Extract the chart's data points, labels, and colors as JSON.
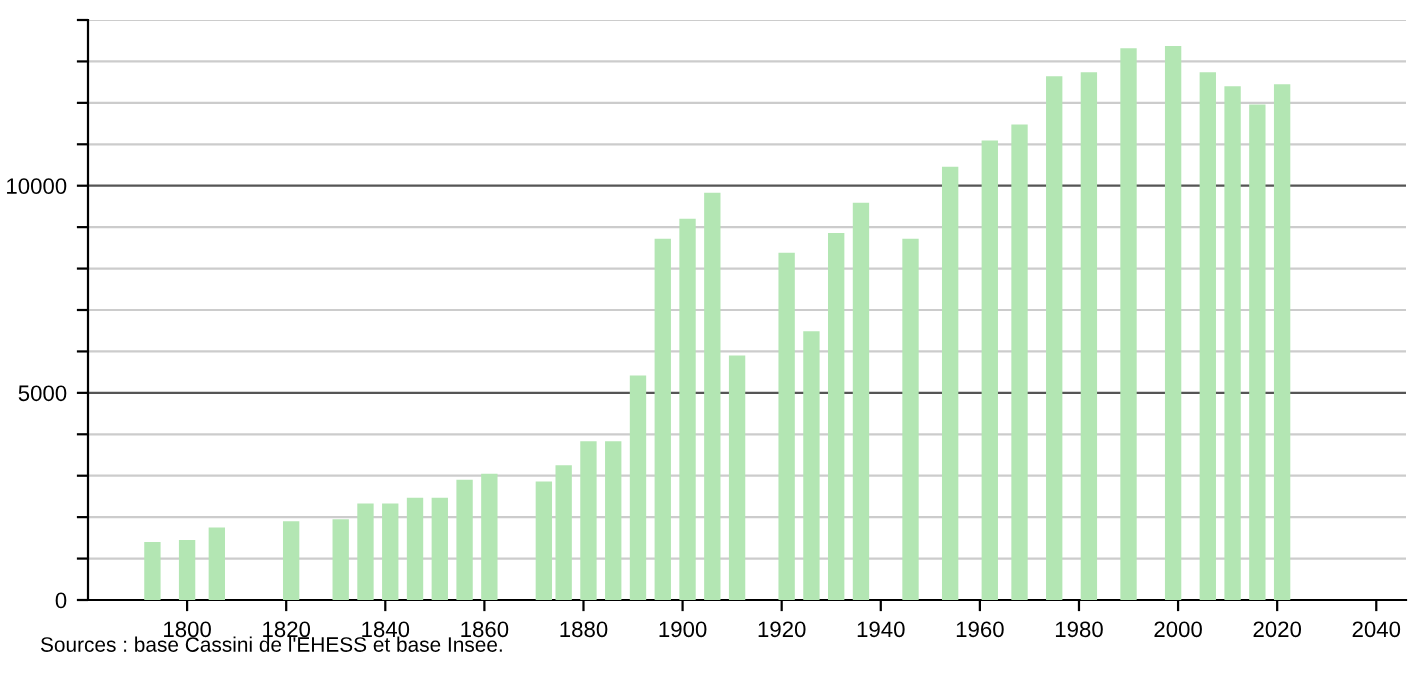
{
  "chart_data": {
    "type": "bar",
    "x": [
      1793,
      1800,
      1806,
      1821,
      1831,
      1836,
      1841,
      1846,
      1851,
      1856,
      1861,
      1872,
      1876,
      1881,
      1886,
      1891,
      1896,
      1901,
      1906,
      1911,
      1921,
      1926,
      1931,
      1936,
      1946,
      1954,
      1962,
      1968,
      1975,
      1982,
      1990,
      1999,
      2006,
      2011,
      2016,
      2021
    ],
    "values": [
      1400,
      1450,
      1750,
      1900,
      1950,
      2330,
      2330,
      2470,
      2470,
      2900,
      3050,
      2860,
      3250,
      3830,
      3830,
      5420,
      8720,
      9200,
      9830,
      5900,
      8380,
      6490,
      8860,
      9590,
      8720,
      10460,
      11090,
      11480,
      12640,
      12740,
      13320,
      13370,
      12740,
      12400,
      11960,
      12450
    ],
    "color": "#b3e6b3",
    "xlim": [
      1780,
      2046
    ],
    "xticks": [
      1800,
      1820,
      1840,
      1860,
      1880,
      1900,
      1920,
      1940,
      1960,
      1980,
      2000,
      2020,
      2040
    ],
    "ylim": [
      0,
      14000
    ],
    "yticks": [
      0,
      {
        "value": 1000,
        "label": null
      },
      {
        "value": 2000,
        "label": null
      },
      {
        "value": 3000,
        "label": null
      },
      {
        "value": 4000,
        "label": null
      },
      5000,
      {
        "value": 6000,
        "label": null
      },
      {
        "value": 7000,
        "label": null
      },
      {
        "value": 8000,
        "label": null
      },
      {
        "value": 9000,
        "label": null
      },
      10000,
      {
        "value": 11000,
        "label": null
      },
      {
        "value": 12000,
        "label": null
      },
      {
        "value": 13000,
        "label": null
      },
      {
        "value": 14000,
        "label": null
      }
    ],
    "grid": "y",
    "annotations": [
      "Sources : base Cassini de l'EHESS et base Insee."
    ]
  }
}
